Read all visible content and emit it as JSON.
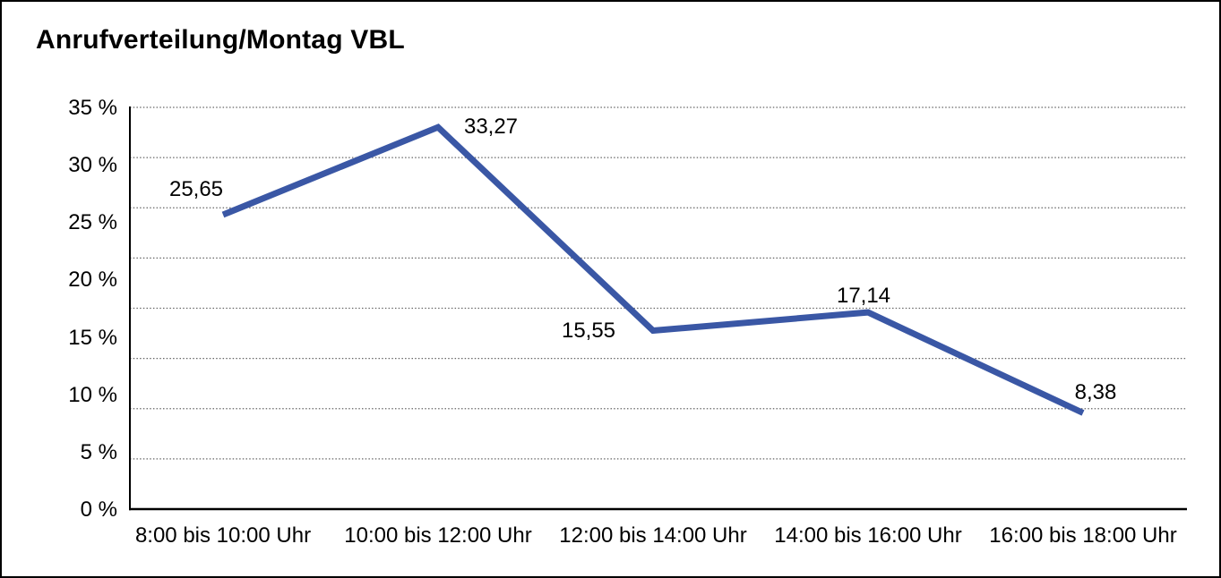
{
  "title": "Anrufverteilung/Montag VBL",
  "chart_data": {
    "type": "line",
    "title": "Anrufverteilung/Montag VBL",
    "categories": [
      "8:00 bis 10:00 Uhr",
      "10:00 bis 12:00 Uhr",
      "12:00 bis 14:00 Uhr",
      "14:00 bis 16:00 Uhr",
      "16:00 bis 18:00 Uhr"
    ],
    "values": [
      25.65,
      33.27,
      15.55,
      17.14,
      8.38
    ],
    "value_labels": [
      "25,65",
      "33,27",
      "15,55",
      "17,14",
      "8,38"
    ],
    "xlabel": "",
    "ylabel": "",
    "ylim": [
      0,
      35
    ],
    "ytick_step": 5,
    "ytick_labels": [
      "35 %",
      "30 %",
      "25 %",
      "20 %",
      "15 %",
      "10 %",
      "5 %",
      "0 %"
    ],
    "grid": "horizontal-dotted",
    "gridline_divisions": 8,
    "legend": "none",
    "line_color": "#3A57A5",
    "axis_color": "#000000",
    "gridline_color": "#666666",
    "background_color": "#ffffff"
  }
}
